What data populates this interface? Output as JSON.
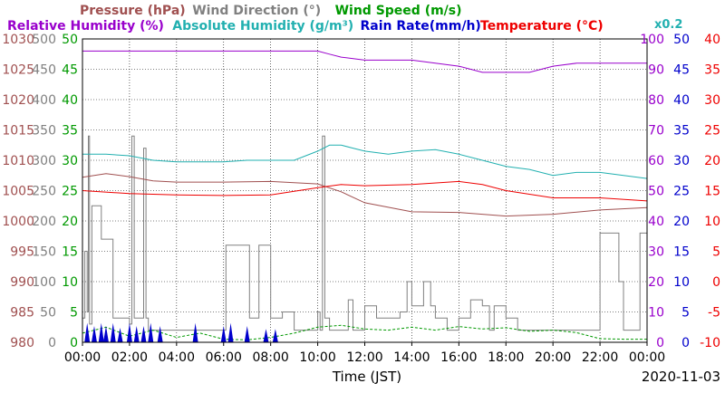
{
  "chart_data": {
    "type": "line",
    "legend": [
      {
        "label": "Pressure (hPa)",
        "color": "#a05050"
      },
      {
        "label": "Wind Direction (°)",
        "color": "#808080"
      },
      {
        "label": "Wind Speed (m/s)",
        "color": "#009900"
      },
      {
        "label": "Relative Humidity (%)",
        "color": "#9900cc"
      },
      {
        "label": "Absolute Humidity (g/m³)",
        "color": "#22b0b0"
      },
      {
        "label": "Rain Rate(mm/h)",
        "color": "#0000cc"
      },
      {
        "label": "Temperature (°C)",
        "color": "#ee0000"
      }
    ],
    "xlabel": "Time (JST)",
    "date": "2020-11-03",
    "multiplier_label": "x0.2",
    "x_ticks": [
      "00:00",
      "02:00",
      "04:00",
      "06:00",
      "08:00",
      "10:00",
      "12:00",
      "14:00",
      "16:00",
      "18:00",
      "20:00",
      "22:00",
      "00:00"
    ],
    "x_range_hours": [
      0,
      24
    ],
    "grid": true,
    "axes": [
      {
        "name": "Pressure (hPa)",
        "side": "left",
        "color": "#a05050",
        "range": [
          980,
          1030
        ],
        "ticks": [
          "1030",
          "1025",
          "1020",
          "1015",
          "1010",
          "1005",
          "1000",
          "995",
          "990",
          "985",
          "980"
        ]
      },
      {
        "name": "Wind Direction (°)",
        "side": "left",
        "color": "#808080",
        "range": [
          0,
          500
        ],
        "ticks": [
          "500",
          "450",
          "400",
          "350",
          "300",
          "250",
          "200",
          "150",
          "100",
          "50",
          "0"
        ]
      },
      {
        "name": "Wind Speed (m/s)",
        "side": "left",
        "color": "#009900",
        "range": [
          0,
          50
        ],
        "ticks": [
          "50",
          "45",
          "40",
          "35",
          "30",
          "25",
          "20",
          "15",
          "10",
          "5",
          "0"
        ]
      },
      {
        "name": "Relative Humidity (%)",
        "side": "right",
        "color": "#9900cc",
        "range": [
          0,
          100
        ],
        "ticks": [
          "100",
          "90",
          "80",
          "70",
          "60",
          "50",
          "40",
          "30",
          "20",
          "10",
          "0"
        ]
      },
      {
        "name": "Rain Rate(mm/h)",
        "side": "right",
        "color": "#0000cc",
        "range": [
          0,
          50
        ],
        "ticks": [
          "50",
          "45",
          "40",
          "35",
          "30",
          "25",
          "20",
          "15",
          "10",
          "5",
          "0"
        ]
      },
      {
        "name": "Temperature (°C)",
        "side": "right",
        "color": "#ee0000",
        "range": [
          -10,
          40
        ],
        "ticks": [
          "40",
          "35",
          "30",
          "25",
          "20",
          "15",
          "10",
          "5",
          "0",
          "-5",
          "-10"
        ]
      }
    ],
    "series": [
      {
        "name": "Pressure (hPa)",
        "axis": 0,
        "color": "#a05050",
        "x": [
          0,
          1,
          2,
          3,
          4,
          6,
          8,
          10,
          11,
          12,
          14,
          16,
          18,
          20,
          22,
          24
        ],
        "y": [
          1007.2,
          1007.8,
          1007.3,
          1006.6,
          1006.4,
          1006.4,
          1006.5,
          1006.1,
          1004.8,
          1003.0,
          1001.5,
          1001.4,
          1000.8,
          1001.1,
          1001.8,
          1002.2
        ]
      },
      {
        "name": "Wind Direction (°)",
        "axis": 1,
        "color": "#808080",
        "x": [
          0,
          0.1,
          0.2,
          0.25,
          0.3,
          0.4,
          0.5,
          0.6,
          0.7,
          0.8,
          1.2,
          1.3,
          1.4,
          2.0,
          2.1,
          2.2,
          2.5,
          2.6,
          2.7,
          2.8,
          2.9,
          3.0,
          4.0,
          5.0,
          5.5,
          6.0,
          6.1,
          7.0,
          7.1,
          7.3,
          7.5,
          8.0,
          8.5,
          9.0,
          9.5,
          9.8,
          10.0,
          10.1,
          10.2,
          10.3,
          10.5,
          10.8,
          11.0,
          11.3,
          11.5,
          12.0,
          12.5,
          13.0,
          13.5,
          13.8,
          14.0,
          14.3,
          14.5,
          14.8,
          15.0,
          15.5,
          16.0,
          16.5,
          17.0,
          17.3,
          17.5,
          18.0,
          18.5,
          19.0,
          19.5,
          20.0,
          21.0,
          21.5,
          22.0,
          22.3,
          22.5,
          22.8,
          23.0,
          23.5,
          23.7,
          23.9,
          24.0
        ],
        "y": [
          40,
          150,
          50,
          340,
          30,
          225,
          225,
          225,
          225,
          170,
          170,
          40,
          40,
          30,
          340,
          40,
          40,
          320,
          40,
          20,
          20,
          20,
          20,
          20,
          20,
          20,
          160,
          160,
          40,
          40,
          160,
          40,
          50,
          20,
          20,
          20,
          50,
          20,
          340,
          40,
          20,
          20,
          20,
          70,
          20,
          60,
          40,
          40,
          50,
          100,
          60,
          60,
          100,
          60,
          40,
          20,
          40,
          70,
          60,
          20,
          60,
          40,
          20,
          20,
          20,
          20,
          20,
          20,
          180,
          180,
          180,
          100,
          20,
          20,
          180,
          180,
          180
        ]
      },
      {
        "name": "Wind Speed (m/s)",
        "axis": 2,
        "color": "#009900",
        "x": [
          0,
          1,
          2,
          3,
          4,
          5,
          6,
          7,
          8,
          9,
          10,
          11,
          12,
          13,
          14,
          15,
          16,
          17,
          18,
          19,
          20,
          21,
          22,
          23,
          24
        ],
        "y": [
          1.5,
          2.5,
          1.0,
          2.0,
          0.8,
          1.5,
          0.5,
          0.4,
          0.8,
          1.5,
          2.5,
          2.8,
          2.2,
          2.0,
          2.5,
          2.0,
          2.6,
          2.2,
          2.4,
          1.8,
          2.0,
          1.6,
          0.6,
          0.5,
          0.5
        ]
      },
      {
        "name": "Relative Humidity (%)",
        "axis": 3,
        "color": "#9900cc",
        "x": [
          0,
          2,
          4,
          6,
          8,
          10,
          10.5,
          11,
          12,
          13,
          14,
          15,
          16,
          17,
          18,
          18.5,
          19,
          20,
          21,
          22,
          24
        ],
        "y": [
          96,
          96,
          96,
          96,
          96,
          96,
          95,
          94,
          93,
          93,
          93,
          92,
          91,
          89,
          89,
          89,
          89,
          91,
          92,
          92,
          92
        ]
      },
      {
        "name": "Absolute Humidity (g/m³)",
        "axis": 3,
        "color": "#22b0b0",
        "x": [
          0,
          1,
          2,
          3,
          4,
          5,
          6,
          7,
          8,
          9,
          10,
          10.5,
          11,
          11.5,
          12,
          13,
          14,
          15,
          16,
          17,
          18,
          19,
          20,
          21,
          22,
          23,
          24
        ],
        "y": [
          62,
          62,
          61.5,
          60,
          59.5,
          59.5,
          59.5,
          60,
          60,
          60,
          63,
          65,
          65,
          64,
          63,
          62,
          63,
          63.5,
          62,
          60,
          58,
          57,
          55,
          56,
          56,
          55,
          54
        ]
      },
      {
        "name": "Temperature (°C)",
        "axis": 5,
        "color": "#ee0000",
        "x": [
          0,
          2,
          4,
          6,
          8,
          10,
          11,
          12,
          14,
          16,
          17,
          18,
          20,
          22,
          24
        ],
        "y": [
          15.0,
          14.5,
          14.3,
          14.2,
          14.3,
          15.5,
          16.0,
          15.8,
          16.0,
          16.5,
          16.0,
          15.0,
          13.8,
          13.8,
          13.3
        ]
      },
      {
        "name": "Rain Rate(mm/h)",
        "axis": 4,
        "color": "#0000cc",
        "type": "bar",
        "x": [
          0.2,
          0.5,
          0.8,
          1.0,
          1.3,
          1.6,
          2.0,
          2.3,
          2.6,
          2.9,
          3.3,
          4.8,
          6.0,
          6.3,
          7.0,
          7.8,
          8.2
        ],
        "y": [
          2,
          1.5,
          2,
          1.5,
          2,
          1.2,
          2,
          1.5,
          1.5,
          2,
          1.5,
          2,
          1.5,
          2,
          1.5,
          1,
          1
        ]
      }
    ]
  }
}
